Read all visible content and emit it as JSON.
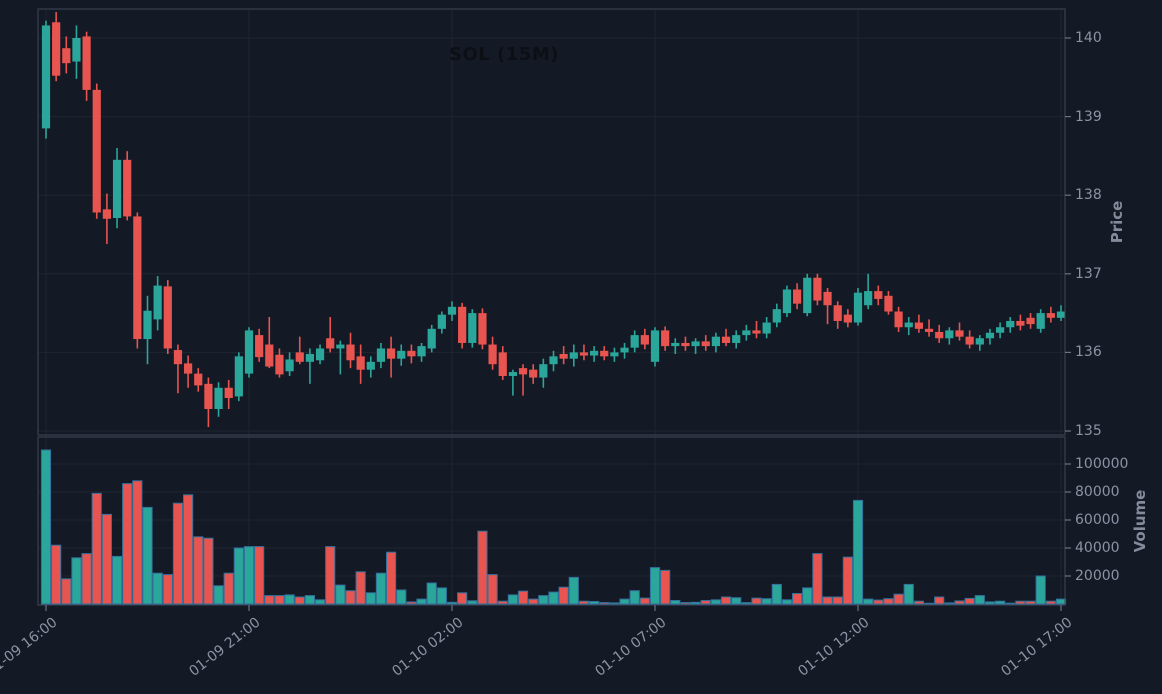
{
  "window": {
    "title": "SOL (15M)"
  },
  "price_axis": {
    "label": "Price",
    "ticks": [
      "135",
      "136",
      "137",
      "138",
      "139",
      "140"
    ]
  },
  "volume_axis": {
    "label": "Volume",
    "ticks": [
      "20000",
      "40000",
      "60000",
      "80000",
      "100000"
    ]
  },
  "time_axis": {
    "ticks": [
      "01-09 16:00",
      "01-09 21:00",
      "01-10 02:00",
      "01-10 07:00",
      "01-10 12:00",
      "01-10 17:00"
    ]
  },
  "colors": {
    "background": "#141a25",
    "grid": "#1f2631",
    "spine": "#3e4656",
    "up": "#2aa69a",
    "down": "#e8544f",
    "volume_edge": "#33709c",
    "tick_text": "#8b93a4",
    "axis_title_text": "#828a9b",
    "title_text": "#0c0f15"
  },
  "chart_data": {
    "type": "candlestick",
    "title": "SOL (15M)",
    "symbol": "SOL",
    "interval": "15M",
    "ylabel": "Price",
    "ylabel_secondary": "Volume",
    "price_axis_ticks": [
      135,
      136,
      137,
      138,
      139,
      140
    ],
    "volume_axis_ticks": [
      20000,
      40000,
      60000,
      80000,
      100000
    ],
    "x_tick_labels": [
      "01-09 16:00",
      "01-09 21:00",
      "01-10 02:00",
      "01-10 07:00",
      "01-10 12:00",
      "01-10 17:00"
    ],
    "x_tick_candle_indices": [
      0,
      20,
      40,
      60,
      80,
      100
    ],
    "grid": true,
    "legend": false,
    "candles_format": [
      "open",
      "high",
      "low",
      "close",
      "volume"
    ],
    "candles": [
      [
        138.85,
        140.22,
        138.72,
        140.16,
        110000
      ],
      [
        140.2,
        140.33,
        139.45,
        139.52,
        42000
      ],
      [
        139.87,
        140.02,
        139.55,
        139.68,
        18000
      ],
      [
        139.7,
        140.16,
        139.48,
        140.0,
        33000
      ],
      [
        140.02,
        140.08,
        139.2,
        139.34,
        36000
      ],
      [
        139.34,
        139.42,
        137.7,
        137.78,
        79000
      ],
      [
        137.82,
        138.02,
        137.38,
        137.7,
        64000
      ],
      [
        137.71,
        138.6,
        137.58,
        138.45,
        34000
      ],
      [
        138.45,
        138.56,
        137.68,
        137.73,
        86000
      ],
      [
        137.73,
        137.78,
        136.05,
        136.17,
        88000
      ],
      [
        136.17,
        136.72,
        135.85,
        136.53,
        69000
      ],
      [
        136.42,
        136.97,
        136.28,
        136.85,
        22000
      ],
      [
        136.84,
        136.92,
        135.98,
        136.05,
        21000
      ],
      [
        136.03,
        136.1,
        135.48,
        135.85,
        72000
      ],
      [
        135.86,
        135.96,
        135.55,
        135.73,
        78000
      ],
      [
        135.73,
        135.8,
        135.5,
        135.58,
        48000
      ],
      [
        135.6,
        135.68,
        135.05,
        135.28,
        47000
      ],
      [
        135.28,
        135.62,
        135.18,
        135.55,
        13000
      ],
      [
        135.55,
        135.65,
        135.28,
        135.42,
        22000
      ],
      [
        135.44,
        136.0,
        135.38,
        135.95,
        40000
      ],
      [
        135.73,
        136.32,
        135.68,
        136.28,
        41000
      ],
      [
        136.22,
        136.3,
        135.88,
        135.94,
        41000
      ],
      [
        136.1,
        136.45,
        135.8,
        135.82,
        6000
      ],
      [
        135.97,
        136.05,
        135.68,
        135.72,
        6000
      ],
      [
        135.76,
        136.0,
        135.7,
        135.91,
        6500
      ],
      [
        136.0,
        136.2,
        135.85,
        135.88,
        5000
      ],
      [
        135.88,
        136.05,
        135.6,
        135.98,
        6000
      ],
      [
        135.9,
        136.1,
        135.85,
        136.05,
        3000
      ],
      [
        136.18,
        136.45,
        136.0,
        136.05,
        41000
      ],
      [
        136.05,
        136.15,
        135.72,
        136.1,
        13500
      ],
      [
        136.1,
        136.25,
        135.8,
        135.9,
        9500
      ],
      [
        135.95,
        136.1,
        135.6,
        135.78,
        23000
      ],
      [
        135.78,
        135.95,
        135.68,
        135.88,
        8000
      ],
      [
        135.88,
        136.12,
        135.8,
        136.05,
        22000
      ],
      [
        136.05,
        136.2,
        135.68,
        135.92,
        37000
      ],
      [
        135.92,
        136.1,
        135.83,
        136.02,
        10000
      ],
      [
        136.02,
        136.1,
        135.86,
        135.95,
        1500
      ],
      [
        135.95,
        136.12,
        135.88,
        136.08,
        3500
      ],
      [
        136.05,
        136.35,
        136.0,
        136.3,
        15000
      ],
      [
        136.3,
        136.52,
        136.24,
        136.48,
        11500
      ],
      [
        136.48,
        136.65,
        136.4,
        136.58,
        1200
      ],
      [
        136.58,
        136.63,
        136.05,
        136.12,
        8000
      ],
      [
        136.12,
        136.55,
        136.06,
        136.5,
        2300
      ],
      [
        136.5,
        136.56,
        136.04,
        136.1,
        52000
      ],
      [
        136.1,
        136.2,
        135.78,
        135.85,
        21000
      ],
      [
        136.0,
        136.08,
        135.65,
        135.7,
        2000
      ],
      [
        135.7,
        135.78,
        135.45,
        135.75,
        6500
      ],
      [
        135.8,
        135.85,
        135.45,
        135.72,
        9200
      ],
      [
        135.78,
        135.85,
        135.6,
        135.68,
        3500
      ],
      [
        135.68,
        135.92,
        135.55,
        135.85,
        6000
      ],
      [
        135.85,
        136.02,
        135.76,
        135.95,
        8500
      ],
      [
        135.98,
        136.08,
        135.85,
        135.92,
        12000
      ],
      [
        135.92,
        136.1,
        135.82,
        136.0,
        19000
      ],
      [
        136.0,
        136.1,
        135.9,
        135.96,
        2000
      ],
      [
        135.96,
        136.08,
        135.88,
        136.02,
        1800
      ],
      [
        136.02,
        136.08,
        135.9,
        135.95,
        1000
      ],
      [
        135.95,
        136.06,
        135.88,
        136.0,
        800
      ],
      [
        136.0,
        136.12,
        135.92,
        136.06,
        3500
      ],
      [
        136.06,
        136.28,
        136.0,
        136.22,
        9500
      ],
      [
        136.22,
        136.3,
        136.04,
        136.1,
        4200
      ],
      [
        135.88,
        136.32,
        135.82,
        136.28,
        26000
      ],
      [
        136.28,
        136.33,
        136.02,
        136.08,
        24000
      ],
      [
        136.08,
        136.18,
        135.98,
        136.12,
        2500
      ],
      [
        136.12,
        136.2,
        136.02,
        136.08,
        1000
      ],
      [
        136.08,
        136.18,
        135.98,
        136.14,
        1200
      ],
      [
        136.14,
        136.22,
        136.02,
        136.08,
        2500
      ],
      [
        136.08,
        136.25,
        136.0,
        136.2,
        3000
      ],
      [
        136.2,
        136.3,
        136.08,
        136.12,
        5000
      ],
      [
        136.12,
        136.28,
        136.05,
        136.22,
        4500
      ],
      [
        136.22,
        136.35,
        136.15,
        136.28,
        1000
      ],
      [
        136.28,
        136.4,
        136.18,
        136.24,
        4200
      ],
      [
        136.24,
        136.45,
        136.18,
        136.38,
        3800
      ],
      [
        136.38,
        136.62,
        136.32,
        136.55,
        14000
      ],
      [
        136.5,
        136.85,
        136.45,
        136.8,
        3000
      ],
      [
        136.8,
        136.88,
        136.55,
        136.62,
        7500
      ],
      [
        136.5,
        137.0,
        136.46,
        136.95,
        11500
      ],
      [
        136.95,
        137.0,
        136.6,
        136.66,
        36000
      ],
      [
        136.77,
        136.82,
        136.36,
        136.6,
        5000
      ],
      [
        136.6,
        136.65,
        136.3,
        136.4,
        5000
      ],
      [
        136.48,
        136.55,
        136.32,
        136.38,
        33500
      ],
      [
        136.38,
        136.82,
        136.34,
        136.76,
        74000
      ],
      [
        136.6,
        137.0,
        136.55,
        136.78,
        3500
      ],
      [
        136.78,
        136.85,
        136.6,
        136.68,
        2800
      ],
      [
        136.72,
        136.78,
        136.48,
        136.52,
        3800
      ],
      [
        136.52,
        136.58,
        136.26,
        136.32,
        7000
      ],
      [
        136.32,
        136.45,
        136.22,
        136.38,
        14000
      ],
      [
        136.38,
        136.48,
        136.25,
        136.3,
        2000
      ],
      [
        136.3,
        136.42,
        136.2,
        136.26,
        500
      ],
      [
        136.26,
        136.35,
        136.12,
        136.18,
        5000
      ],
      [
        136.18,
        136.32,
        136.1,
        136.28,
        800
      ],
      [
        136.28,
        136.38,
        136.15,
        136.2,
        2200
      ],
      [
        136.2,
        136.28,
        136.05,
        136.1,
        4000
      ],
      [
        136.1,
        136.22,
        136.02,
        136.18,
        6000
      ],
      [
        136.18,
        136.3,
        136.1,
        136.25,
        1500
      ],
      [
        136.25,
        136.38,
        136.18,
        136.32,
        2000
      ],
      [
        136.32,
        136.45,
        136.25,
        136.4,
        600
      ],
      [
        136.4,
        136.48,
        136.28,
        136.34,
        2000
      ],
      [
        136.44,
        136.5,
        136.3,
        136.36,
        2000
      ],
      [
        136.3,
        136.55,
        136.25,
        136.5,
        20000
      ],
      [
        136.5,
        136.58,
        136.38,
        136.44,
        2000
      ],
      [
        136.44,
        136.6,
        136.4,
        136.52,
        3500
      ]
    ]
  }
}
